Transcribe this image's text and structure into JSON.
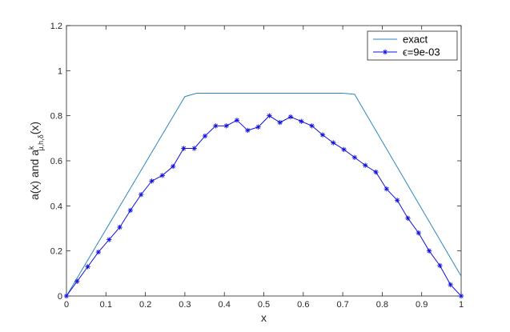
{
  "chart_data": {
    "type": "line",
    "xlabel": "x",
    "ylabel": {
      "main": "a(x) and a",
      "superscript": "k",
      "subscript": "μ,h,δ",
      "tail": "(x)"
    },
    "xlim": [
      0,
      1
    ],
    "ylim": [
      0,
      1.2
    ],
    "x_ticks": [
      "0",
      "0.1",
      "0.2",
      "0.3",
      "0.4",
      "0.5",
      "0.6",
      "0.7",
      "0.8",
      "0.9",
      "1"
    ],
    "y_ticks": [
      "0",
      "0.2",
      "0.4",
      "0.6",
      "0.8",
      "1",
      "1.2"
    ],
    "grid": false,
    "legend_position": "top-right",
    "series": [
      {
        "name": "exact",
        "color": "#2E86C1",
        "marker": "none",
        "x": [
          0,
          0.3,
          0.33,
          0.7,
          0.73,
          1
        ],
        "y": [
          0,
          0.885,
          0.9,
          0.9,
          0.895,
          0.088
        ]
      },
      {
        "name": "ϵ=9e-03",
        "color": "#1010DD",
        "marker": "asterisk",
        "x": [
          0,
          0.027,
          0.054,
          0.081,
          0.108,
          0.135,
          0.162,
          0.189,
          0.216,
          0.243,
          0.27,
          0.297,
          0.324,
          0.351,
          0.378,
          0.405,
          0.432,
          0.459,
          0.486,
          0.514,
          0.541,
          0.568,
          0.595,
          0.622,
          0.649,
          0.676,
          0.703,
          0.73,
          0.757,
          0.784,
          0.811,
          0.838,
          0.865,
          0.892,
          0.919,
          0.946,
          0.973,
          1.0
        ],
        "y": [
          0,
          0.065,
          0.13,
          0.195,
          0.25,
          0.305,
          0.38,
          0.45,
          0.51,
          0.535,
          0.575,
          0.655,
          0.655,
          0.71,
          0.755,
          0.755,
          0.78,
          0.735,
          0.75,
          0.8,
          0.77,
          0.795,
          0.775,
          0.755,
          0.715,
          0.68,
          0.65,
          0.615,
          0.58,
          0.55,
          0.475,
          0.425,
          0.345,
          0.28,
          0.2,
          0.135,
          0.05,
          0.0
        ]
      }
    ]
  }
}
